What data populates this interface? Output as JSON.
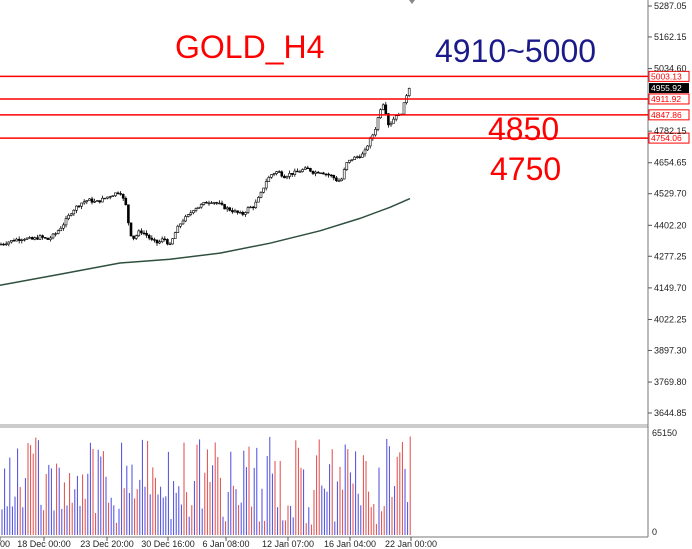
{
  "chart_data": {
    "type": "candlestick",
    "title": "GOLD_H4",
    "annotations": {
      "target_range": "4910~5000",
      "level_a": "4850",
      "level_b": "4750"
    },
    "price_axis": {
      "ticks": [
        5287.05,
        5162.15,
        5034.6,
        4782.15,
        4654.65,
        4529.7,
        4402.2,
        4277.25,
        4149.7,
        4022.25,
        3897.3,
        3769.8,
        3644.85
      ],
      "tick_labels": [
        "5287.05",
        "5162.15",
        "5034.60",
        "4782.15",
        "4654.65",
        "4529.70",
        "4402.20",
        "4277.25",
        "4149.70",
        "4022.25",
        "3897.30",
        "3769.80",
        "3644.85"
      ],
      "ylim": [
        3600,
        5330
      ]
    },
    "horizontal_lines": [
      {
        "value": 5003.13,
        "label": "5003.13",
        "color": "#ff0000"
      },
      {
        "value": 4911.92,
        "label": "4911.92",
        "color": "#ff0000"
      },
      {
        "value": 4847.86,
        "label": "4847.86",
        "color": "#ff0000"
      },
      {
        "value": 4754.06,
        "label": "4754.06",
        "color": "#ff0000"
      }
    ],
    "current_price": {
      "value": 4955.92,
      "label": "4955.92"
    },
    "time_axis": {
      "labels": [
        "00",
        "18 Dec 00:00",
        "23 Dec 20:00",
        "30 Dec 16:00",
        "6 Jan 08:00",
        "12 Jan 07:00",
        "16 Jan 04:00",
        "22 Jan 00:00"
      ]
    },
    "close_path": [
      [
        0,
        4325
      ],
      [
        8,
        4335
      ],
      [
        16,
        4345
      ],
      [
        24,
        4350
      ],
      [
        32,
        4345
      ],
      [
        40,
        4355
      ],
      [
        48,
        4345
      ],
      [
        56,
        4370
      ],
      [
        64,
        4410
      ],
      [
        72,
        4460
      ],
      [
        80,
        4490
      ],
      [
        88,
        4505
      ],
      [
        96,
        4495
      ],
      [
        104,
        4510
      ],
      [
        112,
        4525
      ],
      [
        120,
        4540
      ],
      [
        126,
        4480
      ],
      [
        130,
        4370
      ],
      [
        134,
        4350
      ],
      [
        140,
        4380
      ],
      [
        146,
        4365
      ],
      [
        152,
        4340
      ],
      [
        158,
        4330
      ],
      [
        164,
        4350
      ],
      [
        170,
        4320
      ],
      [
        176,
        4380
      ],
      [
        182,
        4420
      ],
      [
        188,
        4440
      ],
      [
        194,
        4470
      ],
      [
        200,
        4480
      ],
      [
        206,
        4495
      ],
      [
        212,
        4500
      ],
      [
        218,
        4490
      ],
      [
        224,
        4475
      ],
      [
        230,
        4465
      ],
      [
        236,
        4455
      ],
      [
        242,
        4445
      ],
      [
        248,
        4470
      ],
      [
        254,
        4480
      ],
      [
        260,
        4520
      ],
      [
        266,
        4580
      ],
      [
        272,
        4610
      ],
      [
        278,
        4620
      ],
      [
        284,
        4600
      ],
      [
        290,
        4610
      ],
      [
        296,
        4615
      ],
      [
        302,
        4625
      ],
      [
        308,
        4630
      ],
      [
        314,
        4615
      ],
      [
        320,
        4620
      ],
      [
        326,
        4610
      ],
      [
        332,
        4600
      ],
      [
        338,
        4580
      ],
      [
        342,
        4590
      ],
      [
        346,
        4650
      ],
      [
        352,
        4670
      ],
      [
        358,
        4680
      ],
      [
        364,
        4690
      ],
      [
        368,
        4730
      ],
      [
        372,
        4760
      ],
      [
        376,
        4800
      ],
      [
        380,
        4870
      ],
      [
        384,
        4900
      ],
      [
        388,
        4810
      ],
      [
        392,
        4820
      ],
      [
        396,
        4850
      ],
      [
        400,
        4840
      ],
      [
        404,
        4890
      ],
      [
        408,
        4950
      ],
      [
        411,
        4975
      ]
    ],
    "moving_average": {
      "points": [
        [
          0,
          4160
        ],
        [
          60,
          4205
        ],
        [
          120,
          4250
        ],
        [
          170,
          4265
        ],
        [
          220,
          4290
        ],
        [
          270,
          4330
        ],
        [
          320,
          4380
        ],
        [
          360,
          4430
        ],
        [
          390,
          4475
        ],
        [
          410,
          4510
        ]
      ],
      "color": "#2f4f3f"
    },
    "volume": {
      "max_label": "65150",
      "zero_label": "0",
      "max": 65150,
      "up_color": "#4a4ae0",
      "down_color": "#e04a4a"
    },
    "colors": {
      "level_line": "#ff0000",
      "title": "#ff0000",
      "target_range": "#1a1a8a",
      "levels": "#ff0000",
      "candle": "#000000"
    }
  }
}
